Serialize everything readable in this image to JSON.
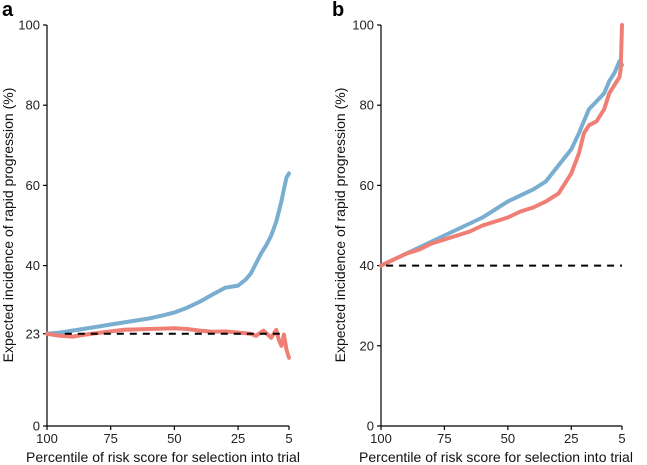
{
  "chart_data": [
    {
      "panel": "a",
      "type": "line",
      "xlabel": "Percentile of risk score for selection into trial",
      "ylabel": "Expected incidence of rapid progression (%)",
      "xlim": [
        100,
        5
      ],
      "ylim": [
        0,
        100
      ],
      "xticks": [
        100,
        75,
        50,
        25,
        5
      ],
      "yticks": [
        0,
        23,
        40,
        60,
        80,
        100
      ],
      "series": [
        {
          "name": "blue",
          "color": "#7aaed0",
          "x": [
            100,
            95,
            90,
            85,
            80,
            75,
            70,
            65,
            60,
            55,
            50,
            45,
            40,
            35,
            30,
            25,
            22,
            20,
            18,
            16,
            14,
            12,
            10,
            8,
            7,
            6,
            5
          ],
          "y": [
            23,
            23.3,
            23.8,
            24.3,
            24.8,
            25.3,
            25.8,
            26.3,
            26.8,
            27.5,
            28.3,
            29.5,
            31,
            32.8,
            34.5,
            35,
            36.5,
            38,
            40.5,
            43,
            45,
            47.5,
            51,
            56,
            59,
            62,
            63
          ]
        },
        {
          "name": "red",
          "color": "#ef7f74",
          "x": [
            100,
            95,
            90,
            85,
            80,
            75,
            70,
            65,
            60,
            55,
            50,
            45,
            40,
            35,
            30,
            25,
            20,
            18,
            15,
            12,
            10,
            9,
            8,
            7,
            6,
            5
          ],
          "y": [
            23,
            22.5,
            22.3,
            22.8,
            23.2,
            23.6,
            24,
            24.1,
            24.2,
            24.3,
            24.4,
            24.2,
            23.8,
            23.5,
            23.6,
            23.3,
            23,
            22.5,
            23.8,
            22,
            24,
            21.5,
            20,
            22.8,
            19,
            17
          ]
        },
        {
          "name": "reference",
          "color": "#000000",
          "x": [
            93,
            7
          ],
          "y": [
            23,
            23
          ]
        }
      ]
    },
    {
      "panel": "b",
      "type": "line",
      "xlabel": "Percentile of risk score for selection into trial",
      "ylabel": "Expected incidence of rapid progression (%)",
      "xlim": [
        100,
        5
      ],
      "ylim": [
        0,
        100
      ],
      "xticks": [
        100,
        75,
        50,
        25,
        5
      ],
      "yticks": [
        0,
        20,
        40,
        60,
        80,
        100
      ],
      "series": [
        {
          "name": "blue",
          "color": "#7aaed0",
          "x": [
            100,
            95,
            90,
            85,
            80,
            75,
            70,
            65,
            60,
            55,
            50,
            45,
            40,
            35,
            30,
            25,
            22,
            20,
            18,
            15,
            12,
            10,
            8,
            6,
            5
          ],
          "y": [
            40,
            41.5,
            43,
            44.5,
            46,
            47.5,
            49,
            50.5,
            52,
            54,
            56,
            57.5,
            59,
            61,
            65,
            69,
            73,
            76,
            79,
            81,
            83,
            86,
            88,
            91,
            90
          ]
        },
        {
          "name": "red",
          "color": "#ef7f74",
          "x": [
            100,
            95,
            90,
            85,
            80,
            75,
            70,
            65,
            60,
            55,
            50,
            45,
            40,
            35,
            30,
            25,
            22,
            20,
            18,
            15,
            12,
            10,
            8,
            6,
            5.5,
            5
          ],
          "y": [
            40,
            41.5,
            43,
            44,
            45.5,
            46.5,
            47.5,
            48.5,
            50,
            51,
            52,
            53.5,
            54.5,
            56,
            58,
            63,
            68,
            73,
            75,
            76,
            79,
            83,
            85,
            87,
            89,
            100
          ]
        },
        {
          "name": "reference",
          "color": "#000000",
          "x": [
            98,
            5
          ],
          "y": [
            40,
            40
          ]
        }
      ]
    }
  ]
}
